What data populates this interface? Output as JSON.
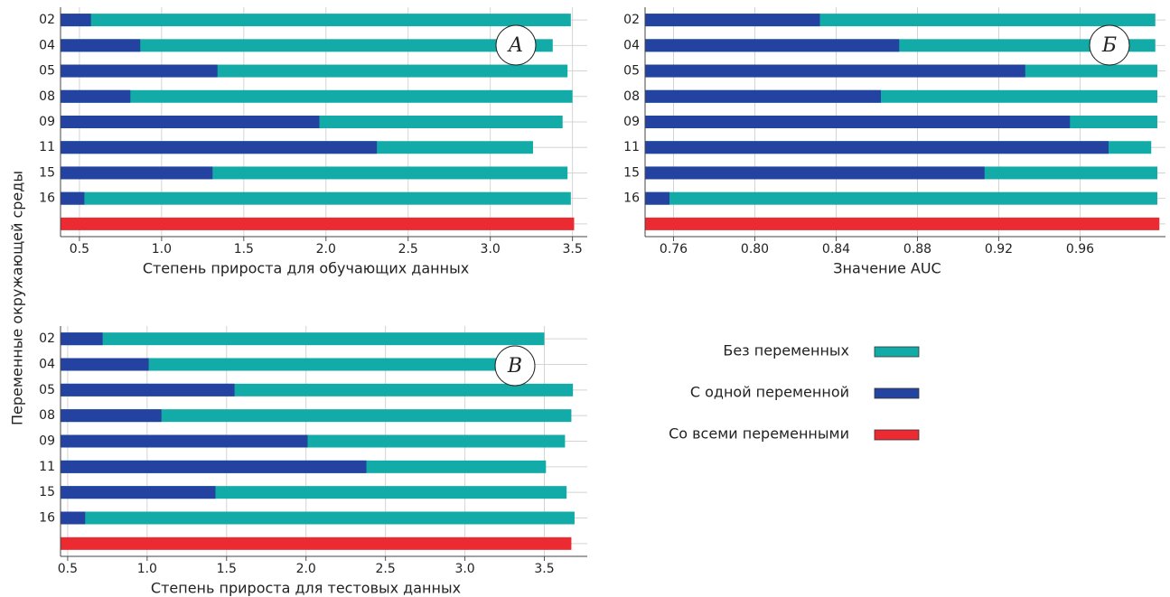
{
  "chart_data": [
    {
      "type": "bar",
      "orientation": "horizontal",
      "panel_label": "А",
      "ylabel": "Переменные окружающей среды",
      "xlabel": "Степень прироста для обучающих данных",
      "categories": [
        "02",
        "04",
        "05",
        "08",
        "09",
        "11",
        "15",
        "16",
        null
      ],
      "series": [
        {
          "name": "Без переменных",
          "color": "#13aba7",
          "values": [
            3.49,
            3.38,
            3.47,
            3.5,
            3.44,
            3.26,
            3.47,
            3.49,
            null
          ]
        },
        {
          "name": "С одной переменной",
          "color": "#2443a0",
          "values": [
            0.57,
            0.87,
            1.34,
            0.81,
            1.96,
            2.31,
            1.31,
            0.53,
            null
          ]
        },
        {
          "name": "Со всеми переменными",
          "color": "#eb2a32",
          "values": [
            null,
            null,
            null,
            null,
            null,
            null,
            null,
            null,
            3.51
          ]
        }
      ],
      "xlim": [
        0.385,
        3.59
      ],
      "xticks": [
        0.5,
        {
          "value": 1,
          "label": "1.0"
        },
        1.5,
        {
          "value": 2,
          "label": "2.0"
        },
        2.5,
        {
          "value": 3,
          "label": "3.0"
        },
        3.5
      ],
      "grid": true
    },
    {
      "type": "bar",
      "orientation": "horizontal",
      "panel_label": "Б",
      "xlabel": "Значение AUC",
      "categories": [
        "02",
        "04",
        "05",
        "08",
        "09",
        "11",
        "15",
        "16",
        null
      ],
      "series": [
        {
          "color": "#13aba7",
          "values": [
            0.997,
            0.997,
            0.998,
            0.998,
            0.998,
            0.995,
            0.998,
            0.998,
            null
          ]
        },
        {
          "color": "#2443a0",
          "values": [
            0.832,
            0.871,
            0.933,
            0.862,
            0.955,
            0.974,
            0.913,
            0.758,
            null
          ]
        },
        {
          "color": "#eb2a32",
          "values": [
            null,
            null,
            null,
            null,
            null,
            null,
            null,
            null,
            0.999
          ]
        }
      ],
      "xlim": [
        0.746,
        1.002
      ],
      "xticks": [
        0.76,
        {
          "value": 0.8,
          "label": "0.80"
        },
        0.84,
        0.88,
        0.92,
        0.96
      ],
      "grid": true
    },
    {
      "type": "bar",
      "orientation": "horizontal",
      "panel_label": "В",
      "xlabel": "Степень прироста для тестовых данных",
      "categories": [
        "02",
        "04",
        "05",
        "08",
        "09",
        "11",
        "15",
        "16",
        null
      ],
      "series": [
        {
          "color": "#13aba7",
          "values": [
            3.5,
            3.38,
            3.68,
            3.67,
            3.63,
            3.51,
            3.64,
            3.69,
            null
          ]
        },
        {
          "color": "#2443a0",
          "values": [
            0.72,
            1.01,
            1.55,
            1.09,
            2.01,
            2.38,
            1.43,
            0.61,
            null
          ]
        },
        {
          "color": "#eb2a32",
          "values": [
            null,
            null,
            null,
            null,
            null,
            null,
            null,
            null,
            3.67
          ]
        }
      ],
      "xlim": [
        0.455,
        3.77
      ],
      "xticks": [
        0.5,
        {
          "value": 1,
          "label": "1.0"
        },
        1.5,
        {
          "value": 2,
          "label": "2.0"
        },
        2.5,
        {
          "value": 3,
          "label": "3.0"
        },
        3.5
      ],
      "grid": true
    }
  ]
}
